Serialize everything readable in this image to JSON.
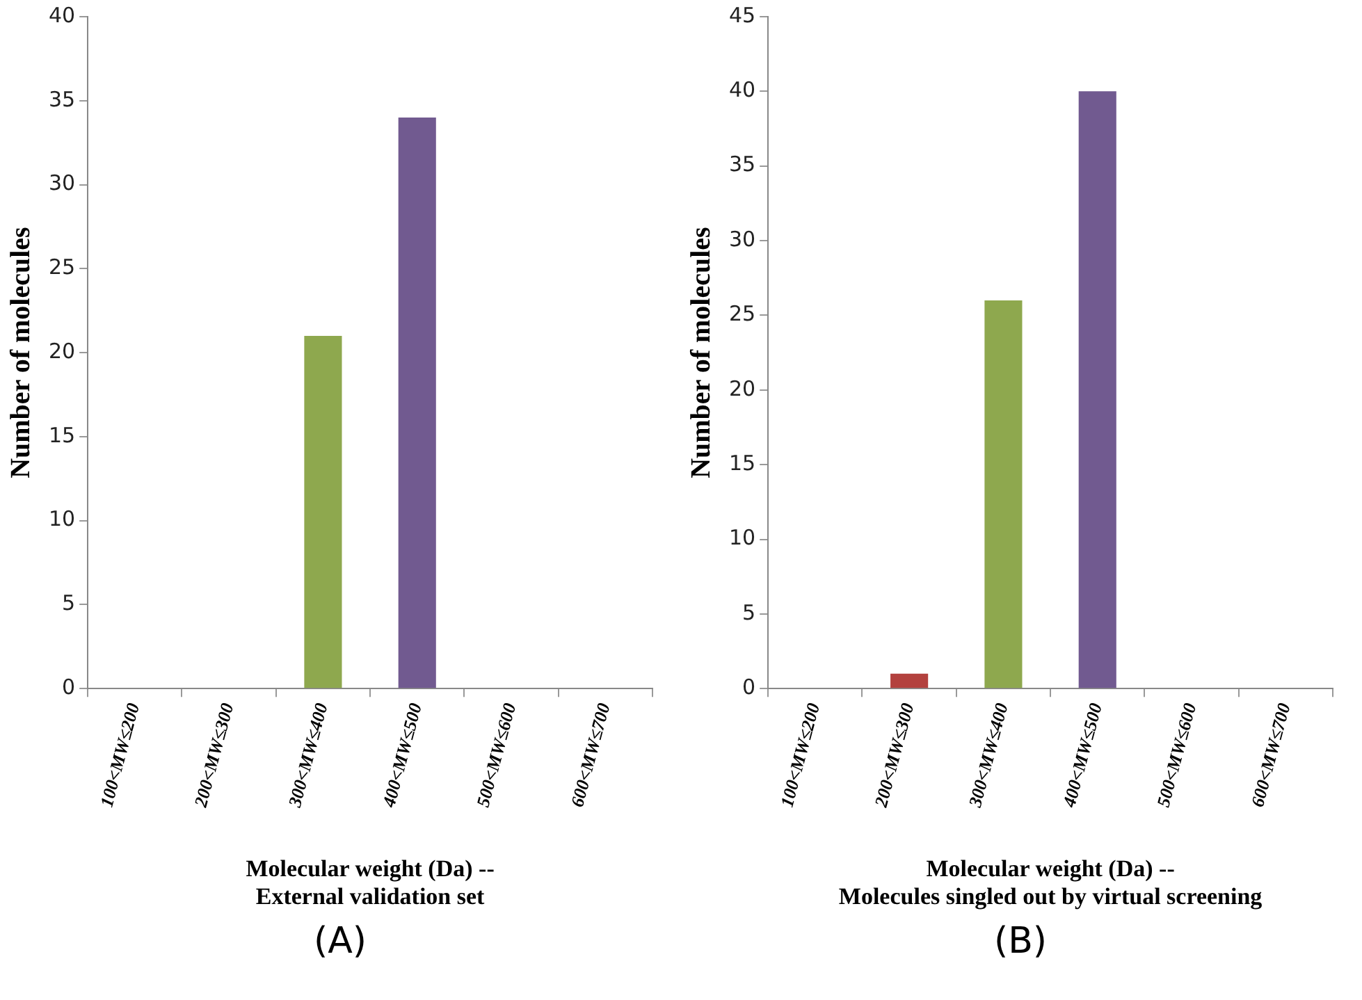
{
  "chart_data": [
    {
      "type": "bar",
      "categories": [
        "100<MW≤200",
        "200<MW≤300",
        "300<MW≤400",
        "400<MW≤500",
        "500<MW≤600",
        "600<MW≤700"
      ],
      "values": [
        0,
        0,
        21,
        34,
        0,
        0
      ],
      "colors": [
        null,
        null,
        "#8ea84e",
        "#715a90",
        null,
        null
      ],
      "ylim": [
        0,
        40
      ],
      "yticks": [
        0,
        5,
        10,
        15,
        20,
        25,
        30,
        35,
        40
      ],
      "ylabel": "Number of molecules",
      "xlabel": "Molecular weight (Da) --\nExternal validation set",
      "annotations": [
        "(A)"
      ],
      "grid": false,
      "legend": false
    },
    {
      "type": "bar",
      "categories": [
        "100<MW≤200",
        "200<MW≤300",
        "300<MW≤400",
        "400<MW≤500",
        "500<MW≤600",
        "600<MW≤700"
      ],
      "values": [
        0,
        1,
        26,
        40,
        0,
        0
      ],
      "colors": [
        null,
        "#b3413e",
        "#8ea84e",
        "#715a90",
        null,
        null
      ],
      "ylim": [
        0,
        45
      ],
      "yticks": [
        0,
        5,
        10,
        15,
        20,
        25,
        30,
        35,
        40,
        45
      ],
      "ylabel": "Number of molecules",
      "xlabel": "Molecular weight (Da) --\nMolecules singled out by virtual screening",
      "annotations": [
        "(B)"
      ],
      "grid": false,
      "legend": false
    }
  ]
}
